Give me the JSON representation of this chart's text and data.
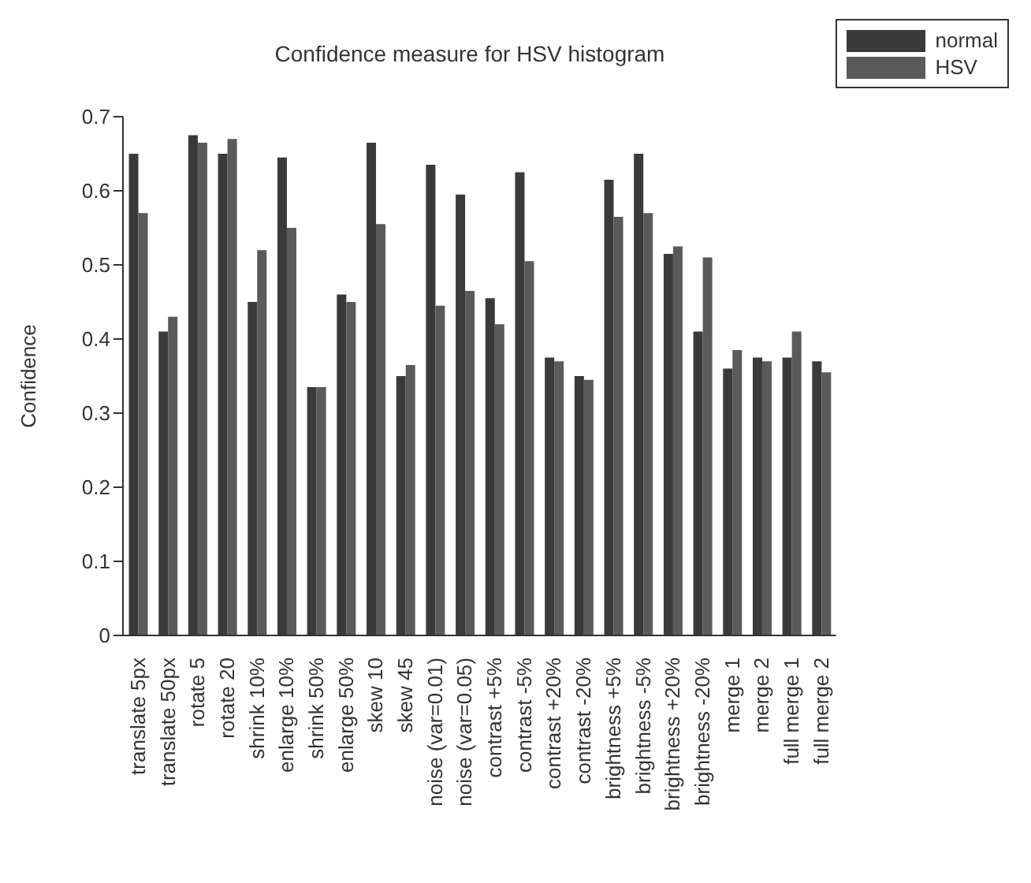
{
  "chart_data": {
    "type": "bar",
    "title": "Confidence measure for HSV histogram",
    "ylabel": "Confidence",
    "categories": [
      "translate 5px",
      "translate 50px",
      "rotate 5",
      "rotate 20",
      "shrink 10%",
      "enlarge 10%",
      "shrink 50%",
      "enlarge 50%",
      "skew 10",
      "skew 45",
      "noise (var=0.01)",
      "noise (var=0.05)",
      "contrast +5%",
      "contrast -5%",
      "contrast +20%",
      "contrast -20%",
      "brightness +5%",
      "brightness -5%",
      "brightness +20%",
      "brightness -20%",
      "merge 1",
      "merge 2",
      "full merge 1",
      "full merge 2"
    ],
    "series": [
      {
        "name": "normal",
        "color": "#3a3a3a",
        "values": [
          0.65,
          0.41,
          0.675,
          0.65,
          0.45,
          0.645,
          0.335,
          0.46,
          0.665,
          0.35,
          0.635,
          0.595,
          0.455,
          0.625,
          0.375,
          0.35,
          0.615,
          0.65,
          0.515,
          0.41,
          0.36,
          0.375,
          0.375,
          0.37
        ]
      },
      {
        "name": "HSV",
        "color": "#5a5a5a",
        "values": [
          0.57,
          0.43,
          0.665,
          0.67,
          0.52,
          0.55,
          0.335,
          0.45,
          0.555,
          0.365,
          0.445,
          0.465,
          0.42,
          0.505,
          0.37,
          0.345,
          0.565,
          0.57,
          0.525,
          0.51,
          0.385,
          0.37,
          0.41,
          0.355
        ]
      }
    ],
    "ylim": [
      0,
      0.7
    ],
    "yticks": [
      0,
      0.1,
      0.2,
      0.3,
      0.4,
      0.5,
      0.6,
      0.7
    ],
    "grid": false,
    "legend": "top right"
  }
}
